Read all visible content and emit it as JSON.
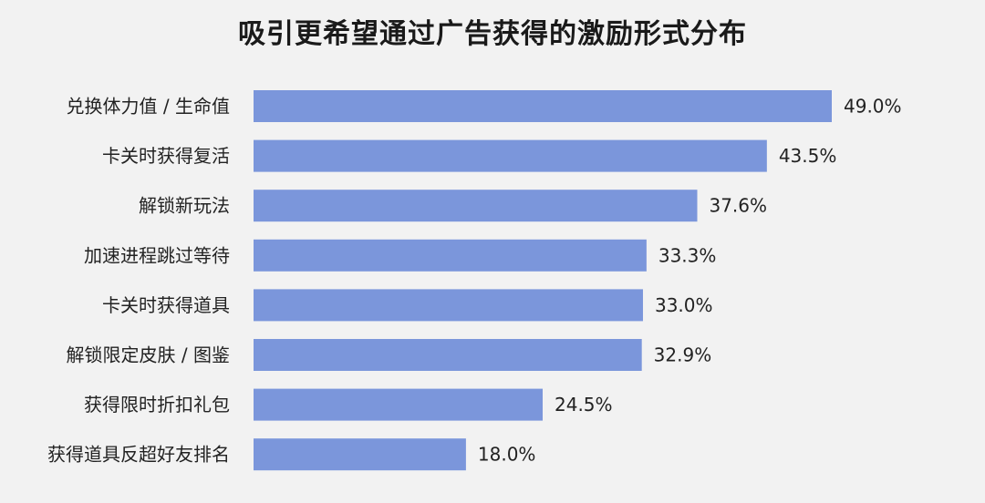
{
  "chart_data": {
    "type": "bar",
    "orientation": "horizontal",
    "title": "吸引更希望通过广告获得的激励形式分布",
    "categories": [
      "兑换体力值 / 生命值",
      "卡关时获得复活",
      "解锁新玩法",
      "加速进程跳过等待",
      "卡关时获得道具",
      "解锁限定皮肤 / 图鉴",
      "获得限时折扣礼包",
      "获得道具反超好友排名"
    ],
    "values": [
      49.0,
      43.5,
      37.6,
      33.3,
      33.0,
      32.9,
      24.5,
      18.0
    ],
    "value_labels": [
      "49.0%",
      "43.5%",
      "37.6%",
      "33.3%",
      "33.0%",
      "32.9%",
      "24.5%",
      "18.0%"
    ],
    "xlim": [
      0,
      49.0
    ],
    "grid": false,
    "legend": "none",
    "bar_color": "#7b96db",
    "background_color": "#f2f2f2"
  }
}
